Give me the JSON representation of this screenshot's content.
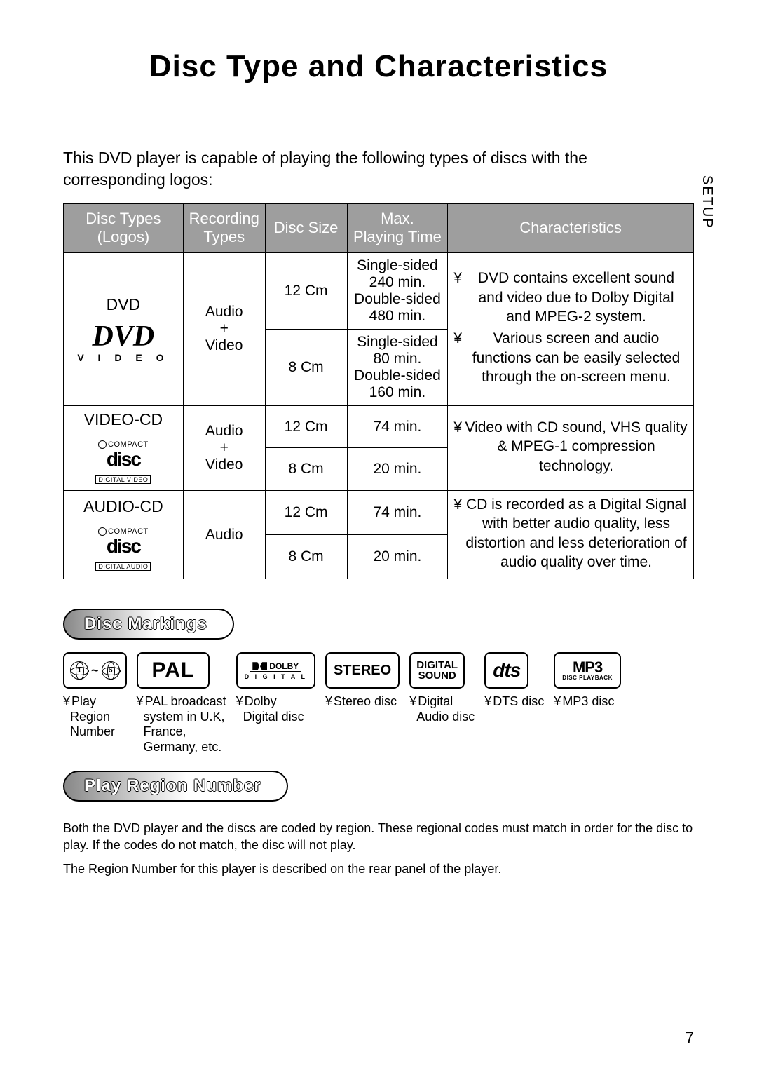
{
  "title": "Disc Type and Characteristics",
  "side_tab": "SETUP",
  "intro": "This DVD player is capable of playing the following types of discs with the corresponding logos:",
  "bullet_symbol": "¥",
  "table": {
    "headers": {
      "logos": "Disc Types\n(Logos)",
      "recording": "Recording\nTypes",
      "size": "Disc Size",
      "time": "Max.\nPlaying Time",
      "char": "Characteristics"
    },
    "rows": [
      {
        "label": "DVD",
        "logo_type": "dvd",
        "logo_sub": "V I D E O",
        "recording": "Audio\n+\nVideo",
        "sizes": [
          {
            "size": "12 Cm",
            "time": "Single-sided\n240 min.\nDouble-sided\n480 min."
          },
          {
            "size": "8 Cm",
            "time": "Single-sided\n80 min.\nDouble-sided\n160 min."
          }
        ],
        "characteristics": [
          "DVD contains excellent sound and video due to Dolby Digital and MPEG-2 system.",
          "Various screen and audio functions can be easily selected through the on-screen menu."
        ]
      },
      {
        "label": "VIDEO-CD",
        "logo_type": "cd",
        "cd_top": "COMPACT",
        "cd_bottom": "DIGITAL VIDEO",
        "recording": "Audio\n+\nVideo",
        "sizes": [
          {
            "size": "12 Cm",
            "time": "74 min."
          },
          {
            "size": "8 Cm",
            "time": "20 min."
          }
        ],
        "characteristics": [
          "Video with CD sound, VHS quality & MPEG-1 compression technology."
        ]
      },
      {
        "label": "AUDIO-CD",
        "logo_type": "cd",
        "cd_top": "COMPACT",
        "cd_bottom": "DIGITAL AUDIO",
        "recording": "Audio",
        "sizes": [
          {
            "size": "12 Cm",
            "time": "74 min."
          },
          {
            "size": "8 Cm",
            "time": "20 min."
          }
        ],
        "characteristics": [
          "CD is recorded as a Digital Signal with better audio quality, less distortion and less deterioration of audio quality over time."
        ]
      }
    ]
  },
  "markings_heading": "Disc Markings",
  "markings": [
    {
      "id": "region",
      "box": "globe",
      "globe_from": "1",
      "globe_to": "6",
      "tilde": "~",
      "label": "Play\nRegion\nNumber"
    },
    {
      "id": "pal",
      "box": "pal",
      "text": "PAL",
      "label": "PAL broadcast\nsystem in U.K,\nFrance,\nGermany, etc."
    },
    {
      "id": "dolby",
      "box": "dolby",
      "top": "DOLBY",
      "bot": "D I G I T A L",
      "label": "Dolby\nDigital disc"
    },
    {
      "id": "stereo",
      "box": "plain",
      "text": "STEREO",
      "label": "Stereo disc"
    },
    {
      "id": "digsound",
      "box": "digsound",
      "line1": "DIGITAL",
      "line2": "SOUND",
      "label": "Digital\nAudio disc"
    },
    {
      "id": "dts",
      "box": "dts",
      "text": "dts",
      "label": "DTS disc"
    },
    {
      "id": "mp3",
      "box": "mp3",
      "top": "MP3",
      "bot": "DISC PLAYBACK",
      "label": "MP3 disc"
    }
  ],
  "region_heading": "Play Region Number",
  "region_text": [
    "Both the DVD player and the discs are coded by region. These regional codes must match in order for the disc to play. If the codes do not match, the disc will not play.",
    "The Region Number for this player is described on the rear panel of the player."
  ],
  "page_number": "7"
}
